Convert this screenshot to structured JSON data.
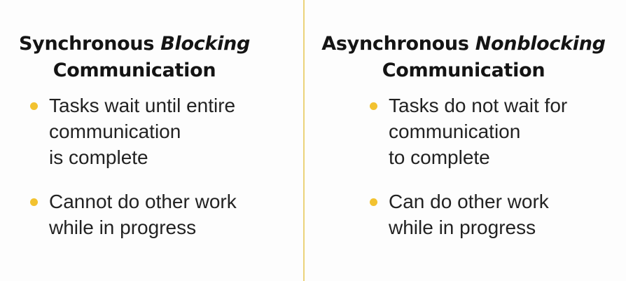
{
  "accent_color": "#f2c230",
  "divider_color": "#ecd37a",
  "left": {
    "heading": {
      "prefix": "Synchronous ",
      "emphasis": "Blocking",
      "line2": "Communication"
    },
    "bullets": [
      {
        "lines": [
          "Tasks wait until entire",
          "communication",
          "is complete"
        ]
      },
      {
        "lines": [
          "Cannot do other work",
          "while in progress"
        ]
      }
    ]
  },
  "right": {
    "heading": {
      "prefix": "Asynchronous ",
      "emphasis": "Nonblocking",
      "line2": "Communication"
    },
    "bullets": [
      {
        "lines": [
          "Tasks do not wait for",
          "communication",
          "to complete"
        ]
      },
      {
        "lines": [
          "Can do other work",
          "while in progress"
        ]
      }
    ]
  }
}
